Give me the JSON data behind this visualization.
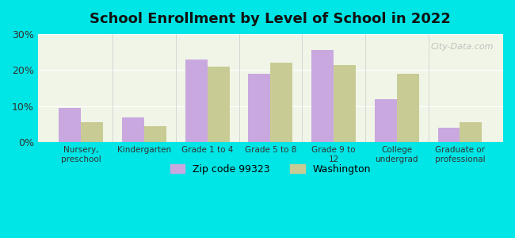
{
  "title": "School Enrollment by Level of School in 2022",
  "categories": [
    "Nursery,\npreschool",
    "Kindergarten",
    "Grade 1 to 4",
    "Grade 5 to 8",
    "Grade 9 to\n12",
    "College\nundergrad",
    "Graduate or\nprofessional"
  ],
  "zip_values": [
    9.5,
    7.0,
    23.0,
    19.0,
    25.5,
    12.0,
    4.0
  ],
  "wa_values": [
    5.5,
    4.5,
    21.0,
    22.0,
    21.5,
    19.0,
    5.5
  ],
  "zip_color": "#c9a8e0",
  "wa_color": "#c8cc94",
  "background_outer": "#00e5e5",
  "background_inner": "#f0f5e8",
  "ylim": [
    0,
    30
  ],
  "yticks": [
    0,
    10,
    20,
    30
  ],
  "ytick_labels": [
    "0%",
    "10%",
    "20%",
    "30%"
  ],
  "legend_zip_label": "Zip code 99323",
  "legend_wa_label": "Washington",
  "bar_width": 0.35,
  "watermark": "City-Data.com"
}
